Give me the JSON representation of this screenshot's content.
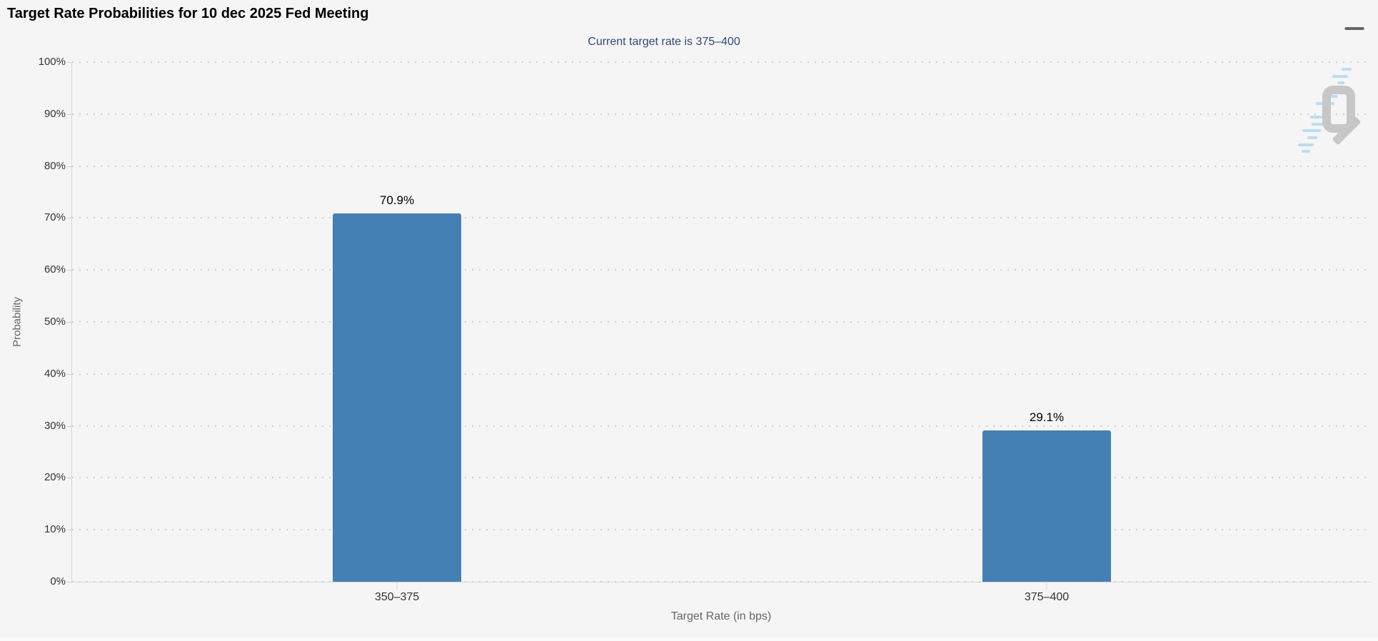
{
  "chart": {
    "title": "Target Rate Probabilities for 10 dec 2025 Fed Meeting",
    "subtitle": "Current target rate is 375–400",
    "menu_icon": "hamburger-icon",
    "watermark_letter": "Q",
    "colors": {
      "background": "#f5f5f5",
      "bar": "#4480b4",
      "subtitle_text": "#33497a",
      "axis_text": "#666666",
      "tick_text": "#333333",
      "gridline": "#cfcfcf",
      "watermark_gray": "#c7c7c7",
      "watermark_blue": "#bcdcf2"
    }
  },
  "chart_data": {
    "type": "bar",
    "title": "Target Rate Probabilities for 10 dec 2025 Fed Meeting",
    "subtitle": "Current target rate is 375–400",
    "categories": [
      "350–375",
      "375–400"
    ],
    "values": [
      70.9,
      29.1
    ],
    "value_labels": [
      "70.9%",
      "29.1%"
    ],
    "xlabel": "Target Rate (in bps)",
    "ylabel": "Probability",
    "ylim": [
      0,
      100
    ],
    "ytick_step": 10,
    "ytick_suffix": "%",
    "grid": "horizontal-dotted",
    "legend": "none"
  }
}
